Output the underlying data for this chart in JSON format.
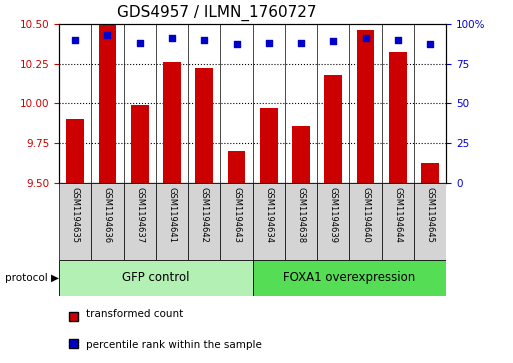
{
  "title": "GDS4957 / ILMN_1760727",
  "samples": [
    "GSM1194635",
    "GSM1194636",
    "GSM1194637",
    "GSM1194641",
    "GSM1194642",
    "GSM1194643",
    "GSM1194634",
    "GSM1194638",
    "GSM1194639",
    "GSM1194640",
    "GSM1194644",
    "GSM1194645"
  ],
  "red_values": [
    9.9,
    10.5,
    9.99,
    10.26,
    10.22,
    9.7,
    9.97,
    9.86,
    10.18,
    10.46,
    10.32,
    9.63
  ],
  "blue_values": [
    90,
    93,
    88,
    91,
    90,
    87,
    88,
    88,
    89,
    91,
    90,
    87
  ],
  "groups": [
    {
      "label": "GFP control",
      "start": 0,
      "end": 6,
      "color": "#b3f0b3"
    },
    {
      "label": "FOXA1 overexpression",
      "start": 6,
      "end": 12,
      "color": "#55dd55"
    }
  ],
  "ylim_left": [
    9.5,
    10.5
  ],
  "ylim_right": [
    0,
    100
  ],
  "bar_color": "#CC0000",
  "dot_color": "#0000CC",
  "bar_width": 0.55,
  "background_color": "#ffffff",
  "plot_bg": "#ffffff",
  "title_fontsize": 11,
  "tick_label_color_left": "#CC0000",
  "tick_label_color_right": "#0000CC",
  "legend_items": [
    {
      "label": "transformed count",
      "color": "#CC0000"
    },
    {
      "label": "percentile rank within the sample",
      "color": "#0000CC"
    }
  ],
  "yticks_left": [
    9.5,
    9.75,
    10.0,
    10.25,
    10.5
  ],
  "yticks_right": [
    0,
    25,
    50,
    75,
    100
  ],
  "right_tick_labels": [
    "0",
    "25",
    "50",
    "75",
    "100%"
  ]
}
